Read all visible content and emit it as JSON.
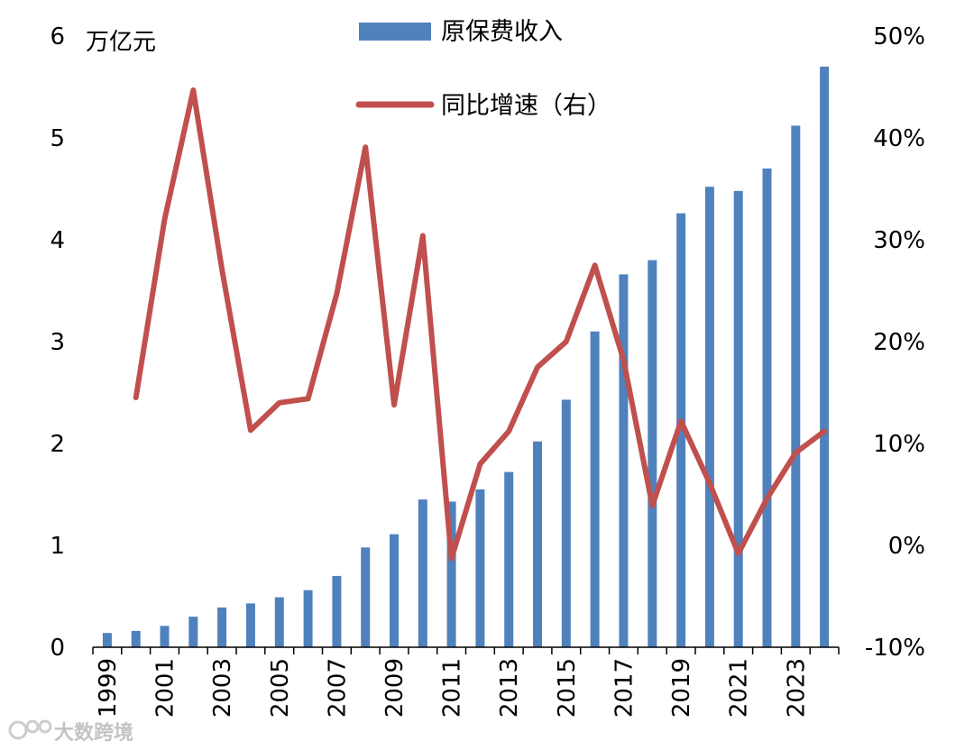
{
  "chart_data": {
    "type": "bar+line",
    "title": "",
    "categories": [
      "1999",
      "2000",
      "2001",
      "2002",
      "2003",
      "2004",
      "2005",
      "2006",
      "2007",
      "2008",
      "2009",
      "2010",
      "2011",
      "2012",
      "2013",
      "2014",
      "2015",
      "2016",
      "2017",
      "2018",
      "2019",
      "2020",
      "2021",
      "2022",
      "2023",
      "2024"
    ],
    "x_tick_labels": [
      "1999",
      "2001",
      "2003",
      "2005",
      "2007",
      "2009",
      "2011",
      "2013",
      "2015",
      "2017",
      "2019",
      "2021",
      "2023"
    ],
    "series": [
      {
        "name": "原保费收入",
        "type": "bar",
        "axis": "left",
        "color": "#4f81bd",
        "values": [
          0.14,
          0.16,
          0.21,
          0.3,
          0.39,
          0.43,
          0.49,
          0.56,
          0.7,
          0.98,
          1.11,
          1.45,
          1.43,
          1.55,
          1.72,
          2.02,
          2.43,
          3.1,
          3.66,
          3.8,
          4.26,
          4.52,
          4.48,
          4.7,
          5.12,
          5.7
        ]
      },
      {
        "name": "同比增速（右）",
        "type": "line",
        "axis": "right",
        "color": "#c0504d",
        "values": [
          null,
          14.5,
          32.0,
          44.7,
          27.1,
          11.3,
          14.0,
          14.4,
          24.7,
          39.1,
          13.8,
          30.4,
          -1.3,
          8.0,
          11.2,
          17.5,
          20.0,
          27.5,
          18.2,
          3.9,
          12.2,
          6.1,
          -0.8,
          4.6,
          9.1,
          11.2
        ]
      }
    ],
    "y_left": {
      "label": "万亿元",
      "min": 0,
      "max": 6,
      "ticks": [
        "0",
        "1",
        "2",
        "3",
        "4",
        "5",
        "6"
      ]
    },
    "y_right": {
      "min": -10,
      "max": 50,
      "ticks": [
        "-10%",
        "0%",
        "10%",
        "20%",
        "30%",
        "40%",
        "50%"
      ]
    },
    "legend": {
      "position": "top-center"
    },
    "grid": false
  },
  "watermark": {
    "text": "大数跨境",
    "icon": "logo-icon"
  }
}
